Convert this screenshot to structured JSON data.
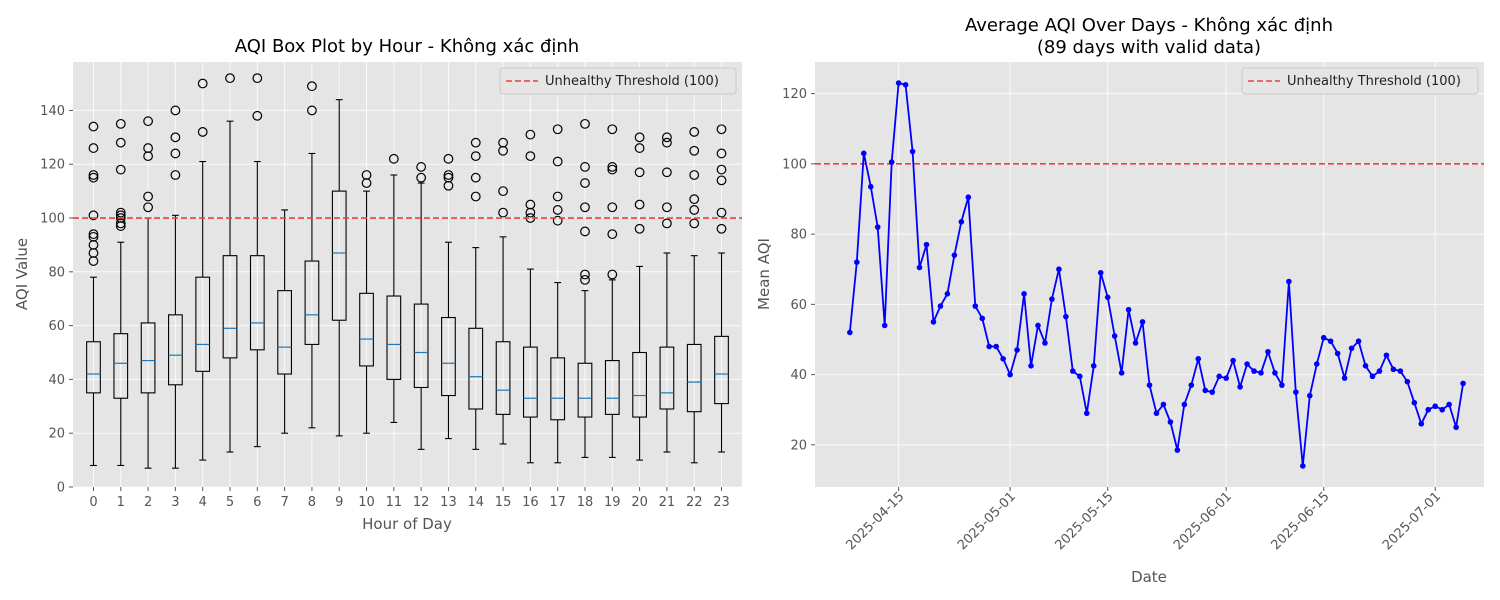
{
  "chart_data": [
    {
      "type": "box",
      "title": "AQI Box Plot by Hour - Không xác định",
      "xlabel": "Hour of Day",
      "ylabel": "AQI Value",
      "ylim": [
        0,
        158
      ],
      "yticks": [
        0,
        20,
        40,
        60,
        80,
        100,
        120,
        140
      ],
      "grid": true,
      "legend": {
        "placement": "top-right",
        "entries": [
          "Unhealthy Threshold (100)"
        ]
      },
      "threshold": {
        "value": 100,
        "label": "Unhealthy Threshold (100)",
        "color": "#e8423f"
      },
      "categories": [
        "0",
        "1",
        "2",
        "3",
        "4",
        "5",
        "6",
        "7",
        "8",
        "9",
        "10",
        "11",
        "12",
        "13",
        "14",
        "15",
        "16",
        "17",
        "18",
        "19",
        "20",
        "21",
        "22",
        "23"
      ],
      "boxes": [
        {
          "whisker_low": 8,
          "q1": 35,
          "median": 42,
          "q3": 54,
          "whisker_high": 78,
          "outliers": [
            134,
            126,
            116,
            115,
            101,
            94,
            93,
            90,
            87,
            84
          ]
        },
        {
          "whisker_low": 8,
          "q1": 33,
          "median": 46,
          "q3": 57,
          "whisker_high": 91,
          "outliers": [
            135,
            128,
            118,
            102,
            101,
            100,
            98,
            97
          ]
        },
        {
          "whisker_low": 7,
          "q1": 35,
          "median": 47,
          "q3": 61,
          "whisker_high": 100,
          "outliers": [
            136,
            126,
            123,
            108,
            104
          ]
        },
        {
          "whisker_low": 7,
          "q1": 38,
          "median": 49,
          "q3": 64,
          "whisker_high": 101,
          "outliers": [
            140,
            130,
            124,
            116
          ]
        },
        {
          "whisker_low": 10,
          "q1": 43,
          "median": 53,
          "q3": 78,
          "whisker_high": 121,
          "outliers": [
            150,
            132
          ]
        },
        {
          "whisker_low": 13,
          "q1": 48,
          "median": 59,
          "q3": 86,
          "whisker_high": 136,
          "outliers": [
            152
          ]
        },
        {
          "whisker_low": 15,
          "q1": 51,
          "median": 61,
          "q3": 86,
          "whisker_high": 121,
          "outliers": [
            152,
            138
          ]
        },
        {
          "whisker_low": 20,
          "q1": 42,
          "median": 52,
          "q3": 73,
          "whisker_high": 103,
          "outliers": []
        },
        {
          "whisker_low": 22,
          "q1": 53,
          "median": 64,
          "q3": 84,
          "whisker_high": 124,
          "outliers": [
            149,
            140
          ]
        },
        {
          "whisker_low": 19,
          "q1": 62,
          "median": 87,
          "q3": 110,
          "whisker_high": 144,
          "outliers": []
        },
        {
          "whisker_low": 20,
          "q1": 45,
          "median": 55,
          "q3": 72,
          "whisker_high": 110,
          "outliers": [
            116,
            113
          ]
        },
        {
          "whisker_low": 24,
          "q1": 40,
          "median": 53,
          "q3": 71,
          "whisker_high": 116,
          "outliers": [
            122
          ]
        },
        {
          "whisker_low": 14,
          "q1": 37,
          "median": 50,
          "q3": 68,
          "whisker_high": 113,
          "outliers": [
            119,
            115
          ]
        },
        {
          "whisker_low": 18,
          "q1": 34,
          "median": 46,
          "q3": 63,
          "whisker_high": 91,
          "outliers": [
            122,
            116,
            115,
            112
          ]
        },
        {
          "whisker_low": 14,
          "q1": 29,
          "median": 41,
          "q3": 59,
          "whisker_high": 89,
          "outliers": [
            128,
            123,
            115,
            108
          ]
        },
        {
          "whisker_low": 16,
          "q1": 27,
          "median": 36,
          "q3": 54,
          "whisker_high": 93,
          "outliers": [
            128,
            125,
            110,
            102
          ]
        },
        {
          "whisker_low": 9,
          "q1": 26,
          "median": 33,
          "q3": 52,
          "whisker_high": 81,
          "outliers": [
            131,
            123,
            105,
            102,
            100
          ]
        },
        {
          "whisker_low": 9,
          "q1": 25,
          "median": 33,
          "q3": 48,
          "whisker_high": 76,
          "outliers": [
            133,
            121,
            108,
            103,
            99
          ]
        },
        {
          "whisker_low": 11,
          "q1": 26,
          "median": 33,
          "q3": 46,
          "whisker_high": 73,
          "outliers": [
            135,
            119,
            113,
            104,
            95,
            79,
            77
          ]
        },
        {
          "whisker_low": 11,
          "q1": 27,
          "median": 33,
          "q3": 47,
          "whisker_high": 77,
          "outliers": [
            133,
            119,
            118,
            104,
            94,
            79
          ]
        },
        {
          "whisker_low": 10,
          "q1": 26,
          "median": 34,
          "q3": 50,
          "whisker_high": 82,
          "outliers": [
            130,
            126,
            117,
            105,
            96
          ]
        },
        {
          "whisker_low": 13,
          "q1": 29,
          "median": 35,
          "q3": 52,
          "whisker_high": 87,
          "outliers": [
            130,
            128,
            117,
            104,
            98
          ]
        },
        {
          "whisker_low": 9,
          "q1": 28,
          "median": 39,
          "q3": 53,
          "whisker_high": 86,
          "outliers": [
            132,
            125,
            116,
            107,
            103,
            98
          ]
        },
        {
          "whisker_low": 13,
          "q1": 31,
          "median": 42,
          "q3": 56,
          "whisker_high": 87,
          "outliers": [
            133,
            124,
            118,
            114,
            102,
            96
          ]
        }
      ]
    },
    {
      "type": "line",
      "title": "Average AQI Over Days - Không xác định",
      "subtitle": "(89 days with valid data)",
      "xlabel": "Date",
      "ylabel": "Mean AQI",
      "xlim": [
        "2025-04-03",
        "2025-07-08"
      ],
      "ylim": [
        8,
        129
      ],
      "yticks": [
        20,
        40,
        60,
        80,
        100,
        120
      ],
      "xticks": [
        "2025-04-15",
        "2025-05-01",
        "2025-05-15",
        "2025-06-01",
        "2025-06-15",
        "2025-07-01"
      ],
      "grid": true,
      "legend": {
        "placement": "top-right",
        "entries": [
          "Unhealthy Threshold (100)"
        ]
      },
      "threshold": {
        "value": 100,
        "label": "Unhealthy Threshold (100)",
        "color": "#e8423f"
      },
      "series_color": "#0000ff",
      "x": [
        "2025-04-08",
        "2025-04-09",
        "2025-04-10",
        "2025-04-11",
        "2025-04-12",
        "2025-04-13",
        "2025-04-14",
        "2025-04-15",
        "2025-04-16",
        "2025-04-17",
        "2025-04-18",
        "2025-04-19",
        "2025-04-20",
        "2025-04-21",
        "2025-04-22",
        "2025-04-23",
        "2025-04-24",
        "2025-04-25",
        "2025-04-26",
        "2025-04-27",
        "2025-04-28",
        "2025-04-29",
        "2025-04-30",
        "2025-05-01",
        "2025-05-02",
        "2025-05-03",
        "2025-05-04",
        "2025-05-05",
        "2025-05-06",
        "2025-05-07",
        "2025-05-08",
        "2025-05-09",
        "2025-05-10",
        "2025-05-11",
        "2025-05-12",
        "2025-05-13",
        "2025-05-14",
        "2025-05-15",
        "2025-05-16",
        "2025-05-17",
        "2025-05-18",
        "2025-05-19",
        "2025-05-20",
        "2025-05-21",
        "2025-05-22",
        "2025-05-23",
        "2025-05-24",
        "2025-05-25",
        "2025-05-26",
        "2025-05-27",
        "2025-05-28",
        "2025-05-29",
        "2025-05-30",
        "2025-05-31",
        "2025-06-01",
        "2025-06-02",
        "2025-06-03",
        "2025-06-04",
        "2025-06-05",
        "2025-06-06",
        "2025-06-07",
        "2025-06-08",
        "2025-06-09",
        "2025-06-10",
        "2025-06-11",
        "2025-06-12",
        "2025-06-13",
        "2025-06-14",
        "2025-06-15",
        "2025-06-16",
        "2025-06-17",
        "2025-06-18",
        "2025-06-19",
        "2025-06-20",
        "2025-06-21",
        "2025-06-22",
        "2025-06-23",
        "2025-06-24",
        "2025-06-25",
        "2025-06-26",
        "2025-06-27",
        "2025-06-28",
        "2025-06-29",
        "2025-06-30",
        "2025-07-01",
        "2025-07-02",
        "2025-07-03",
        "2025-07-04",
        "2025-07-05"
      ],
      "y": [
        52,
        72,
        103,
        93.5,
        82,
        54,
        100.5,
        123,
        122.5,
        103.5,
        70.5,
        77,
        55,
        59.5,
        63,
        74,
        83.5,
        90.5,
        59.5,
        56,
        48,
        48,
        44.5,
        40,
        47,
        63,
        42.5,
        54,
        49,
        61.5,
        70,
        56.5,
        41,
        39.5,
        29,
        42.5,
        69,
        62,
        51,
        40.5,
        58.5,
        49,
        55,
        37,
        29,
        31.5,
        26.5,
        18.5,
        31.5,
        37,
        44.5,
        35.5,
        35,
        39.5,
        39,
        44,
        36.5,
        43,
        41,
        40.5,
        46.5,
        40.5,
        37,
        66.5,
        35,
        14,
        34,
        43,
        50.5,
        49.5,
        46,
        39,
        47.5,
        49.5,
        42.5,
        39.5,
        41,
        45.5,
        41.5,
        41,
        38,
        32,
        26,
        30,
        31,
        30,
        31.5,
        25,
        37.5
      ]
    }
  ]
}
